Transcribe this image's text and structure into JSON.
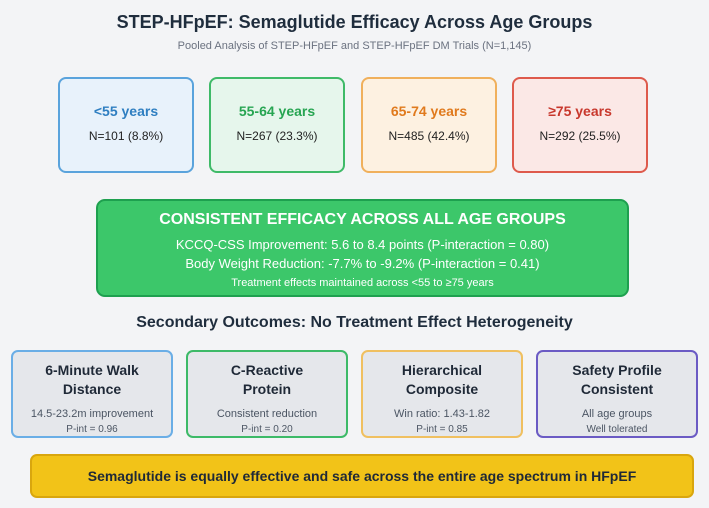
{
  "title": "STEP-HFpEF: Semaglutide Efficacy Across Age Groups",
  "subtitle": "Pooled Analysis of STEP-HFpEF and STEP-HFpEF DM Trials (N=1,145)",
  "age_groups": [
    {
      "label": "<55 years",
      "count": "N=101 (8.8%)",
      "color": "#2f7fc1",
      "bg": "#e8f2fb",
      "border": "#5aa3dc"
    },
    {
      "label": "55-64 years",
      "count": "N=267 (23.3%)",
      "color": "#27a552",
      "bg": "#e6f6ec",
      "border": "#3fba68"
    },
    {
      "label": "65-74 years",
      "count": "N=485 (42.4%)",
      "color": "#e07a1d",
      "bg": "#fdf1e1",
      "border": "#f0b05c"
    },
    {
      "label": "≥75 years",
      "count": "N=292 (25.5%)",
      "color": "#c8382d",
      "bg": "#fbe8e6",
      "border": "#de5a4c"
    }
  ],
  "banner": {
    "heading": "CONSISTENT EFFICACY ACROSS ALL AGE GROUPS",
    "line1": "KCCQ-CSS Improvement: 5.6 to 8.4 points (P-interaction = 0.80)",
    "line2": "Body Weight Reduction: -7.7% to -9.2% (P-interaction = 0.41)",
    "line3": "Treatment effects maintained across <55 to ≥75 years"
  },
  "secondary_title": "Secondary Outcomes: No Treatment Effect Heterogeneity",
  "outcomes": [
    {
      "title1": "6-Minute Walk",
      "title2": "Distance",
      "detail1": "14.5-23.2m improvement",
      "detail2": "P-int = 0.96",
      "border": "#6aaee6"
    },
    {
      "title1": "C-Reactive",
      "title2": "Protein",
      "detail1": "Consistent reduction",
      "detail2": "P-int = 0.20",
      "border": "#3dba68"
    },
    {
      "title1": "Hierarchical",
      "title2": "Composite",
      "detail1": "Win ratio: 1.43-1.82",
      "detail2": "P-int = 0.85",
      "border": "#f0c060"
    },
    {
      "title1": "Safety Profile",
      "title2": "Consistent",
      "detail1": "All age groups",
      "detail2": "Well tolerated",
      "border": "#6b5bc4"
    }
  ],
  "footer": "Semaglutide is equally effective and safe across the entire age spectrum in HFpEF"
}
